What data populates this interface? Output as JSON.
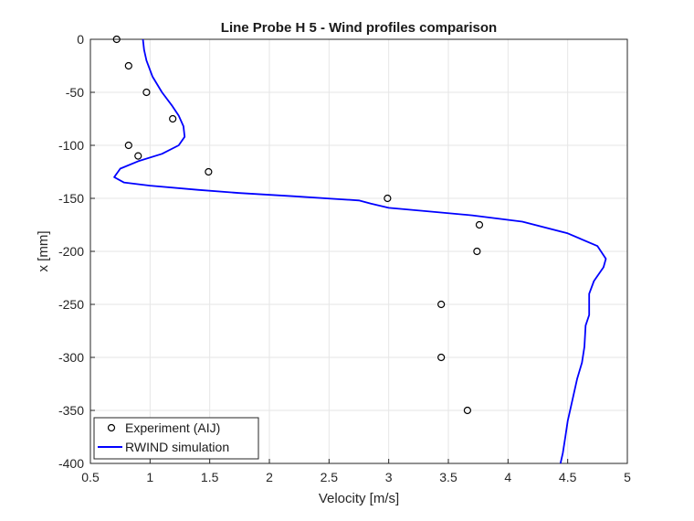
{
  "chart_data": {
    "type": "line",
    "title": "Line Probe H 5 - Wind profiles comparison",
    "xlabel": "Velocity [m/s]",
    "ylabel": "x [mm]",
    "xlim": [
      0.5,
      5
    ],
    "ylim": [
      -400,
      0
    ],
    "xticks": [
      0.5,
      1,
      1.5,
      2,
      2.5,
      3,
      3.5,
      4,
      4.5,
      5
    ],
    "xtick_labels": [
      "0.5",
      "1",
      "1.5",
      "2",
      "2.5",
      "3",
      "3.5",
      "4",
      "4.5",
      "5"
    ],
    "yticks": [
      0,
      -50,
      -100,
      -150,
      -200,
      -250,
      -300,
      -350,
      -400
    ],
    "ytick_labels": [
      "0",
      "-50",
      "-100",
      "-150",
      "-200",
      "-250",
      "-300",
      "-350",
      "-400"
    ],
    "grid": true,
    "legend_position": "bottom-left",
    "series": [
      {
        "name": "Experiment (AIJ)",
        "style": "markers",
        "marker": "circle-open",
        "color": "#000000",
        "x": [
          0.72,
          0.82,
          0.97,
          1.19,
          0.82,
          0.9,
          1.49,
          2.99,
          3.76,
          3.74,
          3.44,
          3.44,
          3.66
        ],
        "y": [
          0,
          -25,
          -50,
          -75,
          -100,
          -110,
          -125,
          -150,
          -175,
          -200,
          -250,
          -300,
          -350
        ]
      },
      {
        "name": "RWIND simulation",
        "style": "line",
        "color": "#0000ff",
        "x": [
          0.94,
          0.95,
          0.97,
          1.02,
          1.1,
          1.18,
          1.24,
          1.28,
          1.29,
          1.24,
          1.1,
          0.9,
          0.75,
          0.7,
          0.78,
          1.0,
          1.4,
          1.75,
          2.2,
          2.75,
          2.85,
          3.0,
          3.3,
          3.7,
          4.12,
          4.5,
          4.75,
          4.82,
          4.8,
          4.72,
          4.68,
          4.68,
          4.65,
          4.64,
          4.62,
          4.58,
          4.54,
          4.5,
          4.48,
          4.46,
          4.44
        ],
        "y": [
          0,
          -10,
          -20,
          -35,
          -50,
          -62,
          -72,
          -82,
          -92,
          -100,
          -108,
          -115,
          -122,
          -130,
          -135,
          -138,
          -142,
          -145,
          -148,
          -152,
          -155,
          -159,
          -162,
          -166,
          -172,
          -183,
          -195,
          -207,
          -215,
          -228,
          -240,
          -260,
          -270,
          -290,
          -305,
          -320,
          -340,
          -360,
          -375,
          -390,
          -400
        ]
      }
    ]
  }
}
